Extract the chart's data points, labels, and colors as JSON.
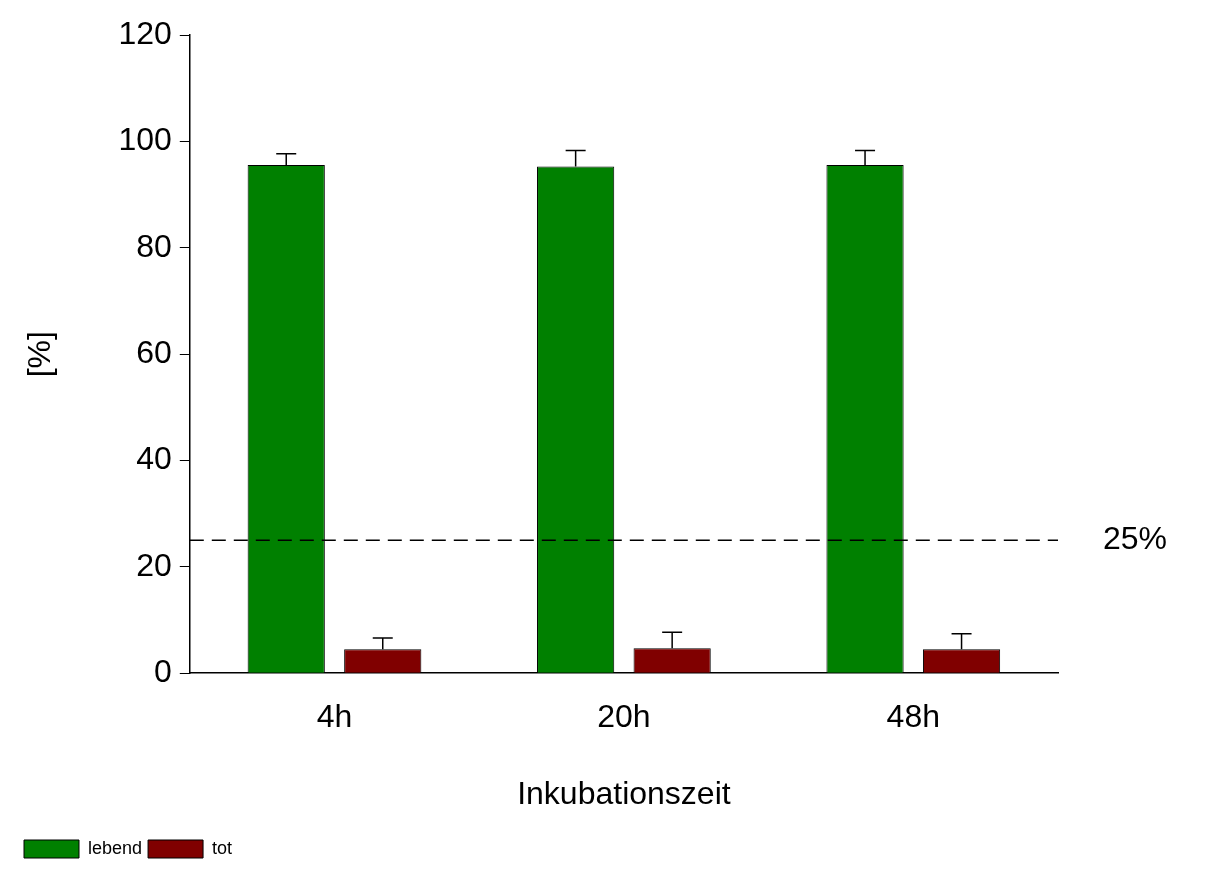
{
  "chart_data": {
    "type": "bar",
    "xlabel": "Inkubationszeit",
    "ylabel": "[%]",
    "categories": [
      "4h",
      "20h",
      "48h"
    ],
    "series": [
      {
        "name": "lebend",
        "color": "#008000",
        "values": [
          95.6,
          95.3,
          95.6
        ],
        "errors": [
          [
            95.6,
            97.7
          ],
          [
            95.3,
            98.3
          ],
          [
            95.6,
            98.3
          ]
        ]
      },
      {
        "name": "tot",
        "color": "#800000",
        "values": [
          4.5,
          4.7,
          4.5
        ],
        "errors": [
          [
            4.5,
            6.6
          ],
          [
            4.7,
            7.7
          ],
          [
            4.5,
            7.4
          ]
        ]
      }
    ],
    "ylim": [
      0,
      120
    ],
    "yticks": [
      0,
      20,
      40,
      60,
      80,
      100,
      120
    ],
    "grid": false,
    "legend": "bottom left",
    "ref_lines": [
      {
        "axis": "y",
        "value": 25,
        "label": "25%",
        "line_style": "dashed",
        "color": "#000000"
      }
    ]
  }
}
